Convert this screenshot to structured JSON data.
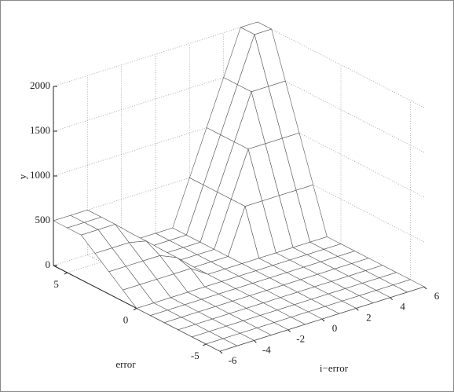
{
  "chart_data": {
    "type": "surface",
    "xlabel": "i−error",
    "ylabel": "error",
    "zlabel": "y",
    "x": [
      -6,
      -5,
      -4,
      -3,
      -2,
      -1,
      0,
      1,
      2,
      3,
      4,
      5,
      6
    ],
    "y": [
      -6,
      -5,
      -4,
      -3,
      -2,
      -1,
      0,
      1,
      2,
      3,
      4,
      5,
      6
    ],
    "z": [
      [
        0,
        0,
        0,
        0,
        0,
        0,
        0,
        0,
        0,
        0,
        0,
        0,
        0
      ],
      [
        0,
        0,
        0,
        0,
        0,
        0,
        0,
        0,
        0,
        0,
        0,
        0,
        0
      ],
      [
        0,
        0,
        0,
        0,
        0,
        0,
        0,
        0,
        0,
        0,
        0,
        0,
        0
      ],
      [
        0,
        0,
        0,
        0,
        0,
        0,
        0,
        0,
        0,
        0,
        0,
        0,
        0
      ],
      [
        0,
        0,
        0,
        0,
        0,
        0,
        0,
        0,
        0,
        0,
        0,
        0,
        0
      ],
      [
        0,
        0,
        0,
        0,
        0,
        0,
        0,
        0,
        0,
        0,
        0,
        0,
        0
      ],
      [
        0,
        0,
        0,
        0,
        0,
        0,
        0,
        0,
        0,
        0,
        0,
        0,
        0
      ],
      [
        125,
        125,
        125,
        125,
        125,
        0,
        0,
        0,
        0,
        0,
        0,
        0,
        0
      ],
      [
        250,
        250,
        250,
        250,
        167,
        0,
        0,
        0,
        500,
        500,
        500,
        500,
        500
      ],
      [
        375,
        375,
        375,
        333,
        167,
        0,
        0,
        0,
        500,
        1000,
        1000,
        1000,
        1000
      ],
      [
        500,
        500,
        500,
        333,
        167,
        0,
        0,
        0,
        500,
        1000,
        1500,
        1500,
        1500
      ],
      [
        500,
        500,
        500,
        333,
        167,
        0,
        0,
        0,
        500,
        1000,
        1500,
        2000,
        2000
      ],
      [
        500,
        500,
        500,
        333,
        167,
        0,
        0,
        0,
        500,
        1000,
        1500,
        2000,
        2000
      ]
    ],
    "xlim": [
      -6,
      6
    ],
    "ylim": [
      -6,
      6
    ],
    "zlim": [
      0,
      2000
    ],
    "xticks": [
      -6,
      -4,
      -2,
      0,
      2,
      4,
      6
    ],
    "yticks": [
      -5,
      0,
      5
    ],
    "zticks": [
      0,
      500,
      1000,
      1500,
      2000
    ],
    "grid": true,
    "color": "#ffffff",
    "edgecolor": "#555555"
  }
}
